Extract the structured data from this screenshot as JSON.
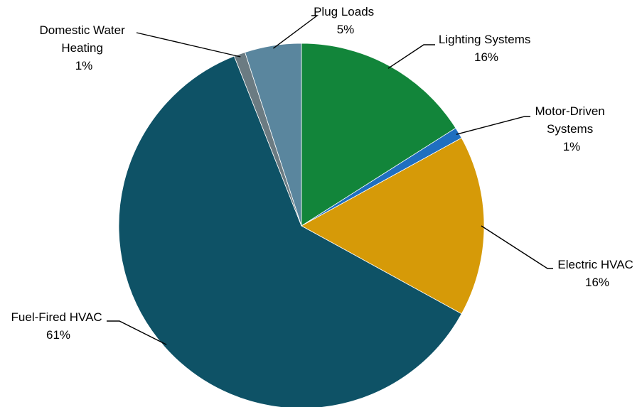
{
  "chart_data": {
    "type": "pie",
    "title": "",
    "start": "12 o'clock",
    "direction": "clockwise",
    "slices": [
      {
        "name": "Lighting Systems",
        "value": 16,
        "label_value": "16%",
        "color": "#12853a"
      },
      {
        "name": "Motor-Driven Systems",
        "value": 1,
        "label_value": "1%",
        "color": "#1f6fc0"
      },
      {
        "name": "Electric HVAC",
        "value": 16,
        "label_value": "16%",
        "color": "#d69a08"
      },
      {
        "name": "Fuel-Fired HVAC",
        "value": 61,
        "label_value": "61%",
        "color": "#0e5266"
      },
      {
        "name": "Domestic Water Heating",
        "value": 1,
        "label_value": "1%",
        "color": "#6b7b82"
      },
      {
        "name": "Plug Loads",
        "value": 5,
        "label_value": "5%",
        "color": "#5a869e"
      }
    ]
  }
}
